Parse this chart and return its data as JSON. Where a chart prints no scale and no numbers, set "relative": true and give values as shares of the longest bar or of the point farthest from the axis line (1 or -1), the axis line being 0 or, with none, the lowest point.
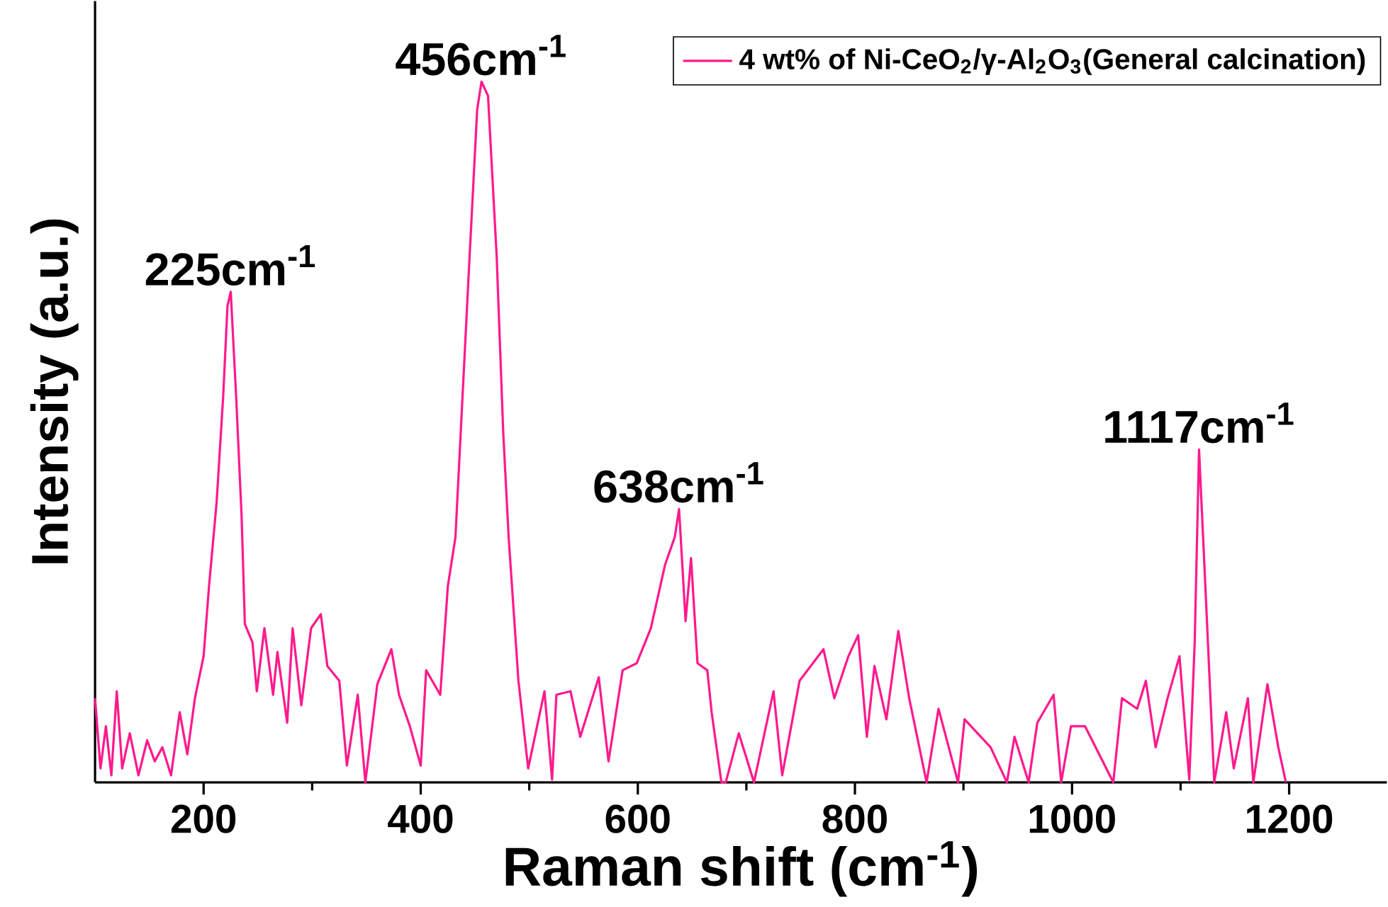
{
  "chart_data": {
    "type": "line",
    "relative": true,
    "xlabel": "Raman shift (cm$^{-1}$)",
    "ylabel": "Intensity (a.u.)",
    "xlim": [
      100,
      1290
    ],
    "xticks": [
      200,
      400,
      600,
      800,
      1000,
      1200
    ],
    "legend": "top right",
    "marker": "none",
    "line_style": "solid",
    "annotations": [
      {
        "text": "225cm$^{-1}$",
        "x": 225,
        "y": 0.7
      },
      {
        "text": "456cm$^{-1}$",
        "x": 456,
        "y": 1.0
      },
      {
        "text": "638cm$^{-1}$",
        "x": 638,
        "y": 0.39
      },
      {
        "text": "1117cm$^{-1}$",
        "x": 1117,
        "y": 0.475
      }
    ],
    "series": [
      {
        "name": "4 wt% of Ni-CeO$_{2}$/γ-Al$_{2}$O$_{3}$(General calcination)",
        "color": "#ff1a8c",
        "x": [
          100,
          105,
          110,
          115,
          120,
          125,
          132,
          140,
          148,
          155,
          162,
          170,
          178,
          185,
          192,
          200,
          205,
          212,
          218,
          222,
          225,
          230,
          235,
          238,
          245,
          249,
          256,
          264,
          268,
          277,
          282,
          290,
          299,
          308,
          314,
          325,
          332,
          342,
          349,
          360,
          373,
          380,
          390,
          400,
          405,
          418,
          425,
          432,
          445,
          452,
          456,
          462,
          470,
          476,
          481,
          490,
          499,
          514,
          521,
          525,
          538,
          547,
          564,
          573,
          586,
          599,
          612,
          625,
          634,
          638,
          644,
          649,
          655,
          664,
          668,
          677,
          681,
          693,
          707,
          725,
          733,
          749,
          771,
          781,
          794,
          803,
          811,
          818,
          829,
          840,
          850,
          866,
          877,
          895,
          901,
          925,
          940,
          947,
          960,
          968,
          983,
          990,
          999,
          1012,
          1025,
          1038,
          1046,
          1060,
          1068,
          1077,
          1088,
          1099,
          1108,
          1113,
          1117,
          1124,
          1131,
          1142,
          1149,
          1162,
          1167,
          1180,
          1190,
          1197
        ],
        "values": [
          0.12,
          0.02,
          0.08,
          0.01,
          0.13,
          0.02,
          0.07,
          0.01,
          0.06,
          0.03,
          0.05,
          0.01,
          0.1,
          0.04,
          0.12,
          0.18,
          0.28,
          0.4,
          0.55,
          0.68,
          0.7,
          0.55,
          0.38,
          0.226,
          0.2,
          0.13,
          0.22,
          0.125,
          0.186,
          0.085,
          0.22,
          0.11,
          0.22,
          0.24,
          0.166,
          0.145,
          0.024,
          0.125,
          0.0,
          0.14,
          0.19,
          0.125,
          0.08,
          0.024,
          0.16,
          0.125,
          0.28,
          0.35,
          0.75,
          0.96,
          1.0,
          0.98,
          0.75,
          0.5,
          0.35,
          0.145,
          0.02,
          0.13,
          0.004,
          0.125,
          0.13,
          0.065,
          0.15,
          0.03,
          0.16,
          0.17,
          0.22,
          0.31,
          0.35,
          0.39,
          0.23,
          0.32,
          0.17,
          0.16,
          0.1,
          0.0,
          0.0,
          0.07,
          0.0,
          0.13,
          0.01,
          0.145,
          0.19,
          0.12,
          0.18,
          0.21,
          0.065,
          0.166,
          0.09,
          0.216,
          0.12,
          0.0,
          0.105,
          0.0,
          0.09,
          0.05,
          0.0,
          0.065,
          0.0,
          0.085,
          0.125,
          0.0,
          0.08,
          0.08,
          0.04,
          0.0,
          0.12,
          0.105,
          0.145,
          0.05,
          0.12,
          0.18,
          0.004,
          0.2,
          0.475,
          0.24,
          0.0,
          0.1,
          0.02,
          0.12,
          0.0,
          0.14,
          0.05,
          0.0
        ]
      }
    ]
  }
}
